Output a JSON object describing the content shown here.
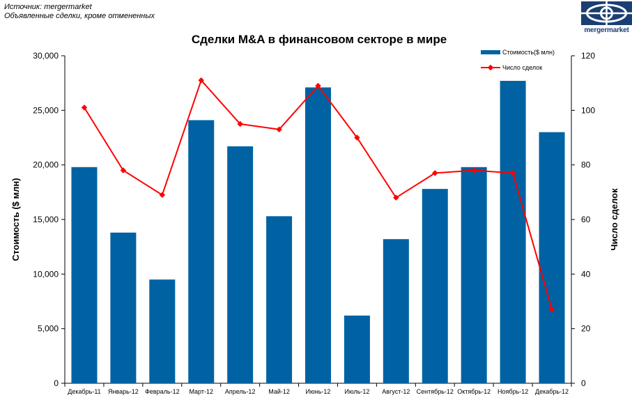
{
  "source": {
    "line1": "Источник: mergermarket",
    "line2": "Объявленные сделки, кроме отмененных"
  },
  "logo": {
    "text": "mergermarket",
    "icon": "eye-logo-icon",
    "color": "#1b3f73"
  },
  "chart_data": {
    "type": "bar",
    "title": "Сделки M&A в финансовом секторе в мире",
    "categories": [
      "Декабрь-11",
      "Январь-12",
      "Февраль-12",
      "Март-12",
      "Апрель-12",
      "Май-12",
      "Июнь-12",
      "Июль-12",
      "Август-12",
      "Сентябрь-12",
      "Октябрь-12",
      "Ноябрь-12",
      "Декабрь-12"
    ],
    "series": [
      {
        "name": "Стоимость($ млн)",
        "type": "bar",
        "axis": "left",
        "color": "#0062a3",
        "values": [
          19800,
          13800,
          9500,
          24100,
          21700,
          15300,
          27100,
          6200,
          13200,
          17800,
          19800,
          27700,
          23000
        ]
      },
      {
        "name": "Число сделок",
        "type": "line",
        "axis": "right",
        "color": "#ff0000",
        "values": [
          101,
          78,
          69,
          111,
          95,
          93,
          109,
          90,
          68,
          77,
          78,
          77,
          27
        ]
      }
    ],
    "ylabel": "Стоимость ($ млн)",
    "y2label": "Число сделок",
    "ylim": [
      0,
      30000
    ],
    "y2lim": [
      0,
      120
    ],
    "yticks": [
      "0",
      "5,000",
      "10,000",
      "15,000",
      "20,000",
      "25,000",
      "30,000"
    ],
    "y2ticks": [
      "0",
      "20",
      "40",
      "60",
      "80",
      "100",
      "120"
    ],
    "grid": false,
    "legend": "top-right"
  }
}
